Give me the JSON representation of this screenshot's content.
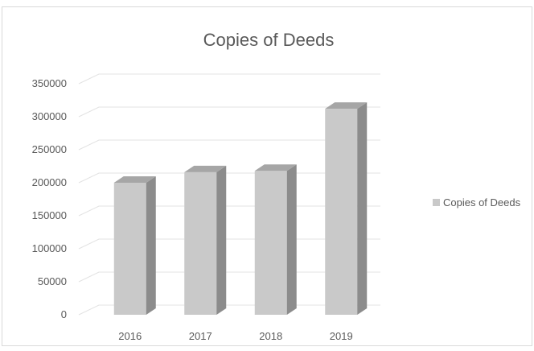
{
  "chart_data": {
    "type": "bar",
    "title": "Copies of Deeds",
    "categories": [
      "2016",
      "2017",
      "2018",
      "2019"
    ],
    "series": [
      {
        "name": "Copies of Deeds",
        "values": [
          200000,
          216000,
          218000,
          312000
        ]
      }
    ],
    "ylim": [
      0,
      350000
    ],
    "yticks": [
      "0",
      "50000",
      "100000",
      "150000",
      "200000",
      "250000",
      "300000",
      "350000"
    ],
    "grid": true,
    "legend_position": "right",
    "colors": {
      "bar_front": "#c9c9c9",
      "bar_side": "#8c8c8c",
      "bar_top": "#a6a6a6",
      "grid": "#e3e3e3",
      "text": "#595959"
    }
  }
}
